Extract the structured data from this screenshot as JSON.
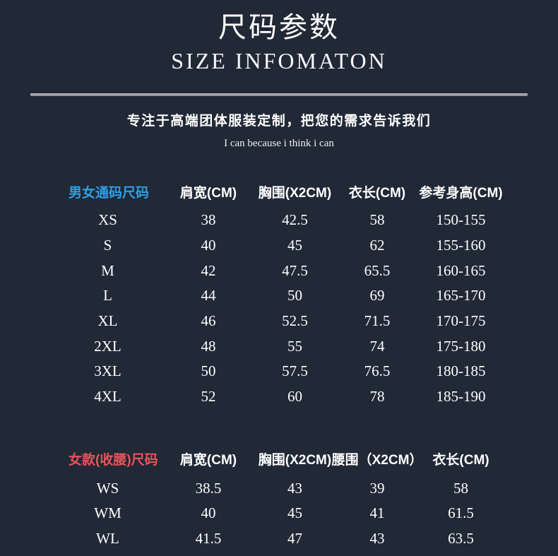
{
  "page": {
    "title": "尺码参数",
    "subtitle": "SIZE INFOMATON",
    "tagline_cn": "专注于高端团体服装定制，把您的需求告诉我们",
    "tagline_en": "I can because i think i can"
  },
  "colors": {
    "background": "#212836",
    "text": "#ffffff",
    "unisex_label_blue": "#2e9fe6",
    "women_label_red": "#e8545a",
    "divider_gray": "#9aa0a8"
  },
  "unisex_table": {
    "label": "男女通码尺码",
    "headers": [
      "肩宽(CM)",
      "胸围(X2CM)",
      "衣长(CM)",
      "参考身高(CM)"
    ],
    "rows": [
      {
        "size": "XS",
        "values": [
          "38",
          "42.5",
          "58",
          "150-155"
        ]
      },
      {
        "size": "S",
        "values": [
          "40",
          "45",
          "62",
          "155-160"
        ]
      },
      {
        "size": "M",
        "values": [
          "42",
          "47.5",
          "65.5",
          "160-165"
        ]
      },
      {
        "size": "L",
        "values": [
          "44",
          "50",
          "69",
          "165-170"
        ]
      },
      {
        "size": "XL",
        "values": [
          "46",
          "52.5",
          "71.5",
          "170-175"
        ]
      },
      {
        "size": "2XL",
        "values": [
          "48",
          "55",
          "74",
          "175-180"
        ]
      },
      {
        "size": "3XL",
        "values": [
          "50",
          "57.5",
          "76.5",
          "180-185"
        ]
      },
      {
        "size": "4XL",
        "values": [
          "52",
          "60",
          "78",
          "185-190"
        ]
      }
    ]
  },
  "women_table": {
    "label": "女款(收腰)尺码",
    "headers": [
      "肩宽(CM)",
      "胸围(X2CM)",
      "腰围（X2CM）",
      "衣长(CM)"
    ],
    "rows": [
      {
        "size": "WS",
        "values": [
          "38.5",
          "43",
          "39",
          "58"
        ]
      },
      {
        "size": "WM",
        "values": [
          "40",
          "45",
          "41",
          "61.5"
        ]
      },
      {
        "size": "WL",
        "values": [
          "41.5",
          "47",
          "43",
          "63.5"
        ]
      }
    ]
  }
}
